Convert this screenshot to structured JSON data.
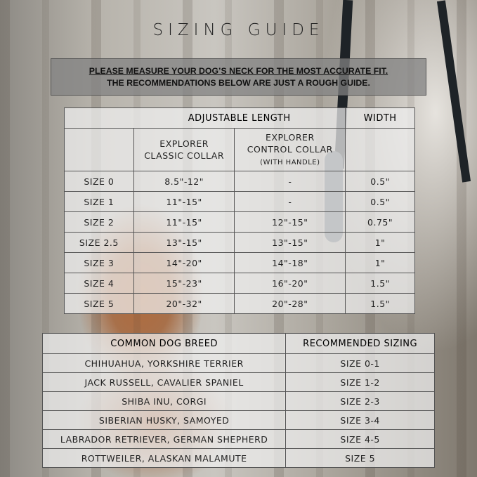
{
  "title": "SIZING GUIDE",
  "notice": {
    "line1": "PLEASE MEASURE YOUR DOG’S NECK FOR THE MOST ACCURATE FIT.",
    "line2": "THE RECOMMENDATIONS BELOW ARE JUST A ROUGH GUIDE."
  },
  "size_table": {
    "group_headers": {
      "length": "ADJUSTABLE LENGTH",
      "width": "WIDTH"
    },
    "columns": {
      "classic_line1": "EXPLORER",
      "classic_line2": "CLASSIC COLLAR",
      "control_line1": "EXPLORER",
      "control_line2": "CONTROL COLLAR",
      "control_line3": "(WITH HANDLE)"
    },
    "rows": [
      {
        "size": "SIZE 0",
        "classic": "8.5\"-12\"",
        "control": "-",
        "width": "0.5\""
      },
      {
        "size": "SIZE 1",
        "classic": "11\"-15\"",
        "control": "-",
        "width": "0.5\""
      },
      {
        "size": "SIZE 2",
        "classic": "11\"-15\"",
        "control": "12\"-15\"",
        "width": "0.75\""
      },
      {
        "size": "SIZE 2.5",
        "classic": "13\"-15\"",
        "control": "13\"-15\"",
        "width": "1\""
      },
      {
        "size": "SIZE 3",
        "classic": "14\"-20\"",
        "control": "14\"-18\"",
        "width": "1\""
      },
      {
        "size": "SIZE 4",
        "classic": "15\"-23\"",
        "control": "16\"-20\"",
        "width": "1.5\""
      },
      {
        "size": "SIZE 5",
        "classic": "20\"-32\"",
        "control": "20\"-28\"",
        "width": "1.5\""
      }
    ]
  },
  "breed_table": {
    "headers": {
      "breed": "COMMON DOG BREED",
      "sizing": "RECOMMENDED SIZING"
    },
    "rows": [
      {
        "breed": "CHIHUAHUA, YORKSHIRE TERRIER",
        "sizing": "SIZE 0-1"
      },
      {
        "breed": "JACK RUSSELL, CAVALIER SPANIEL",
        "sizing": "SIZE 1-2"
      },
      {
        "breed": "SHIBA INU, CORGI",
        "sizing": "SIZE 2-3"
      },
      {
        "breed": "SIBERIAN HUSKY, SAMOYED",
        "sizing": "SIZE 3-4"
      },
      {
        "breed": "LABRADOR RETRIEVER, GERMAN SHEPHERD",
        "sizing": "SIZE 4-5"
      },
      {
        "breed": "ROTTWEILER, ALASKAN MALAMUTE",
        "sizing": "SIZE 5"
      }
    ]
  }
}
